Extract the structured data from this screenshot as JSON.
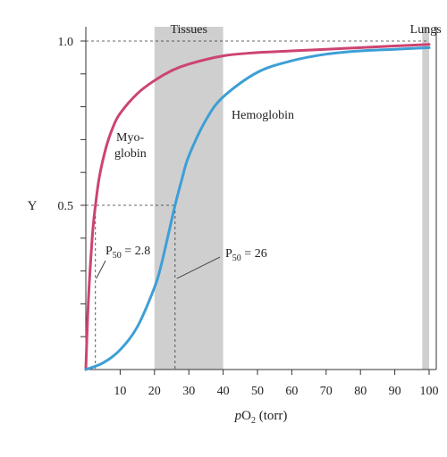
{
  "chart_data": {
    "type": "line",
    "xlabel": "pO2 (torr)",
    "ylabel": "Y",
    "xlim": [
      0,
      100
    ],
    "ylim": [
      0,
      1
    ],
    "x_ticks": [
      10,
      20,
      30,
      40,
      50,
      60,
      70,
      80,
      90,
      100
    ],
    "y_ticks": [
      0.5,
      1.0
    ],
    "y_tick_labels": [
      "0.5",
      "1.0"
    ],
    "regions": [
      {
        "label": "Tissues",
        "x_start": 20,
        "x_end": 40
      },
      {
        "label": "Lungs",
        "x_start": 98,
        "x_end": 100
      }
    ],
    "series": [
      {
        "name": "Myoglobin",
        "color": "#cc4470",
        "x": [
          0,
          0.5,
          1,
          2,
          2.8,
          4,
          6,
          8,
          10,
          15,
          20,
          25,
          30,
          40,
          50,
          60,
          70,
          80,
          90,
          100
        ],
        "values": [
          0,
          0.15,
          0.26,
          0.42,
          0.5,
          0.59,
          0.68,
          0.74,
          0.78,
          0.84,
          0.88,
          0.91,
          0.93,
          0.955,
          0.965,
          0.97,
          0.975,
          0.98,
          0.985,
          0.99
        ]
      },
      {
        "name": "Hemoglobin",
        "color": "#3d9fd6",
        "x": [
          0,
          5,
          10,
          15,
          20,
          22,
          24,
          26,
          28,
          30,
          35,
          40,
          50,
          60,
          70,
          80,
          90,
          100
        ],
        "values": [
          0,
          0.02,
          0.06,
          0.13,
          0.25,
          0.32,
          0.41,
          0.5,
          0.58,
          0.65,
          0.76,
          0.83,
          0.905,
          0.94,
          0.96,
          0.97,
          0.975,
          0.98
        ]
      }
    ],
    "annotations": [
      {
        "text": "Myo-",
        "text2": "globin",
        "series": "Myoglobin"
      },
      {
        "text": "Hemoglobin",
        "series": "Hemoglobin"
      },
      {
        "text": "P",
        "sub": "50",
        "suffix": " = 2.8",
        "x": 2.8,
        "y": 0.5
      },
      {
        "text": "P",
        "sub": "50",
        "suffix": " = 26",
        "x": 26,
        "y": 0.5
      }
    ]
  }
}
